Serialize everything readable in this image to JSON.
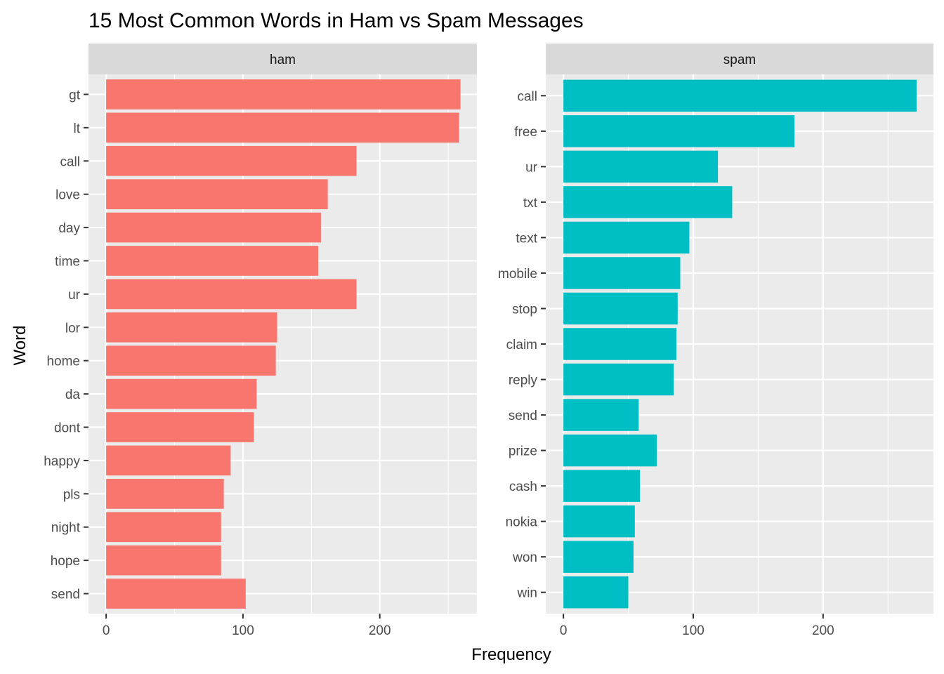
{
  "chart_data": {
    "type": "bar",
    "orientation": "horizontal",
    "title": "15 Most Common Words in Ham vs Spam Messages",
    "xlabel": "Frequency",
    "ylabel": "Word",
    "grid": true,
    "legend": "none",
    "xticks": [
      0,
      100,
      200
    ],
    "panels": [
      {
        "name": "ham",
        "color": "#F8766D",
        "xlim": [
          -12.9,
          271
        ],
        "categories": [
          "gt",
          "lt",
          "call",
          "love",
          "day",
          "time",
          "ur",
          "lor",
          "home",
          "da",
          "dont",
          "happy",
          "pls",
          "night",
          "hope",
          "send"
        ],
        "values": [
          259,
          258,
          183,
          162,
          157,
          155,
          183,
          125,
          124,
          110,
          108,
          91,
          86,
          84,
          84,
          102
        ]
      },
      {
        "name": "spam",
        "color": "#00BFC4",
        "xlim": [
          -13.6,
          285
        ],
        "categories": [
          "call",
          "free",
          "ur",
          "txt",
          "text",
          "mobile",
          "stop",
          "claim",
          "reply",
          "send",
          "prize",
          "cash",
          "nokia",
          "won",
          "win"
        ],
        "values": [
          272,
          178,
          119,
          130,
          97,
          90,
          88,
          87,
          85,
          58,
          72,
          59,
          55,
          54,
          50
        ]
      }
    ]
  }
}
